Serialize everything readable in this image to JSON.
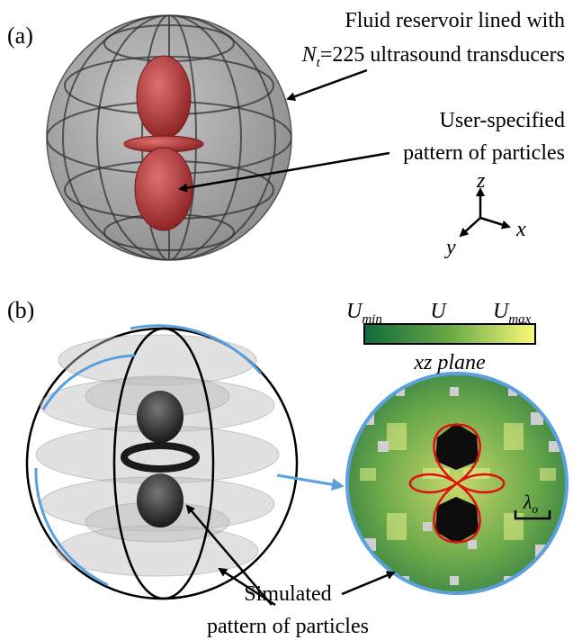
{
  "panel_a": {
    "label": "(a)",
    "reservoir_line1": "Fluid reservoir lined with",
    "reservoir_line2_symbol": "N",
    "reservoir_line2_sub": "t",
    "reservoir_line2_rest": "=225 ultrasound transducers",
    "user_line1": "User-specified",
    "user_line2": "pattern of particles",
    "axes": {
      "z": "z",
      "x": "x",
      "y": "y"
    }
  },
  "panel_b": {
    "label": "(b)",
    "colorbar": {
      "min_symbol": "U",
      "min_sub": "min",
      "mid": "U",
      "max_symbol": "U",
      "max_sub": "max",
      "plane_label": "xz plane",
      "color_low": "#0f6b3c",
      "color_high": "#fafa7a"
    },
    "wavelength_symbol": "λ",
    "wavelength_sub": "o",
    "sim_line1": "Simulated",
    "sim_line2": "pattern of particles"
  },
  "colors": {
    "sphere_fill": "#8c8c8c",
    "target_red": "#b03a3a",
    "slice_border": "#5aa0dc",
    "contour_red": "#e01010"
  }
}
